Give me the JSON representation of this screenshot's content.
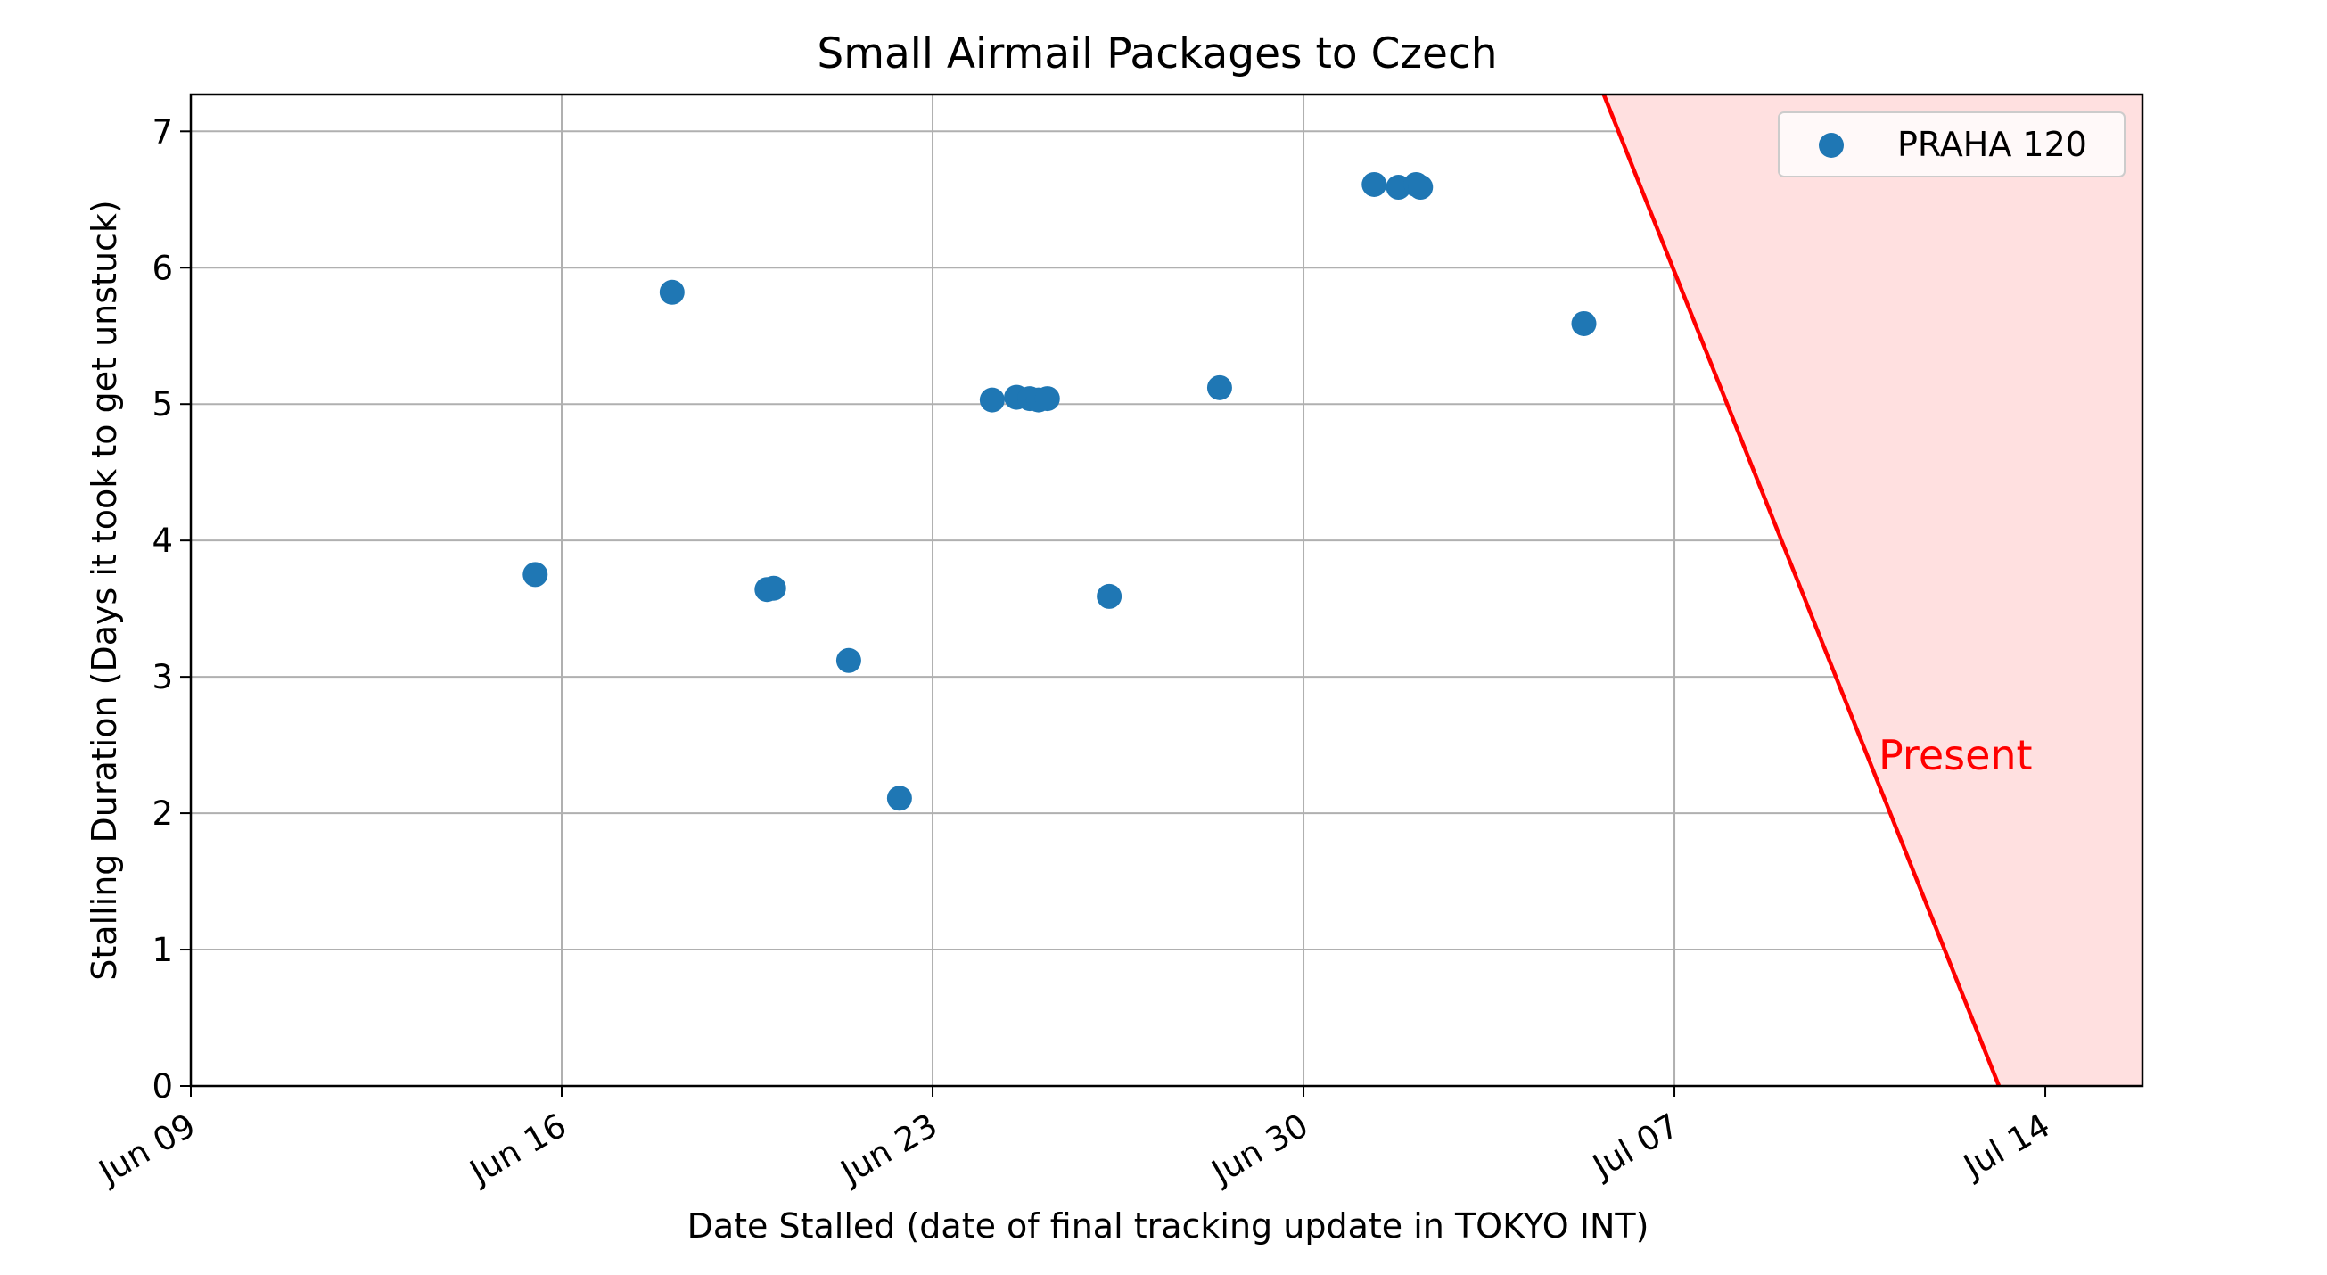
{
  "chart_data": {
    "type": "scatter",
    "title": "Small Airmail Packages to Czech",
    "xlabel": "Date Stalled (date of final tracking update in TOKYO INT)",
    "ylabel": "Stalling Duration (Days it took to get unstuck)",
    "x_axis": {
      "scale": "date",
      "range": [
        "2024-06-09",
        "2024-07-15T20:00"
      ],
      "tick_labels": [
        "Jun 09",
        "Jun 16",
        "Jun 23",
        "Jun 30",
        "Jul 07",
        "Jul 14"
      ],
      "tick_values": [
        "2024-06-09",
        "2024-06-16",
        "2024-06-23",
        "2024-06-30",
        "2024-07-07",
        "2024-07-14"
      ]
    },
    "y_axis": {
      "range": [
        0,
        7.27
      ],
      "tick_labels": [
        "0",
        "1",
        "2",
        "3",
        "4",
        "5",
        "6",
        "7"
      ],
      "tick_values": [
        0,
        1,
        2,
        3,
        4,
        5,
        6,
        7
      ]
    },
    "grid": true,
    "legend": {
      "position": "top-right",
      "entries": [
        "PRAHA 120"
      ]
    },
    "series": [
      {
        "name": "PRAHA 120",
        "color": "#1f77b4",
        "points": [
          {
            "x": "2024-06-15T12:00",
            "y": 3.75
          },
          {
            "x": "2024-06-18T02:00",
            "y": 5.82
          },
          {
            "x": "2024-06-19T21:00",
            "y": 3.64
          },
          {
            "x": "2024-06-20T00:00",
            "y": 3.65
          },
          {
            "x": "2024-06-21T10:00",
            "y": 3.12
          },
          {
            "x": "2024-06-22T09:00",
            "y": 2.11
          },
          {
            "x": "2024-06-24T03:00",
            "y": 5.03
          },
          {
            "x": "2024-06-24T14:00",
            "y": 5.05
          },
          {
            "x": "2024-06-24T20:00",
            "y": 5.04
          },
          {
            "x": "2024-06-25T00:00",
            "y": 5.03
          },
          {
            "x": "2024-06-25T04:00",
            "y": 5.04
          },
          {
            "x": "2024-06-26T08:00",
            "y": 3.59
          },
          {
            "x": "2024-06-28T10:00",
            "y": 5.12
          },
          {
            "x": "2024-07-01T08:00",
            "y": 6.61
          },
          {
            "x": "2024-07-01T19:00",
            "y": 6.59
          },
          {
            "x": "2024-07-02T03:00",
            "y": 6.61
          },
          {
            "x": "2024-07-02T05:00",
            "y": 6.59
          },
          {
            "x": "2024-07-05T07:00",
            "y": 5.59
          }
        ]
      }
    ],
    "present_region": {
      "label": "Present",
      "color": "#ff0000",
      "fill": "#ffe0e0",
      "line": [
        {
          "x": "2024-07-05T16:00",
          "y": 7.27
        },
        {
          "x": "2024-07-13T03:00",
          "y": 0
        }
      ]
    }
  }
}
